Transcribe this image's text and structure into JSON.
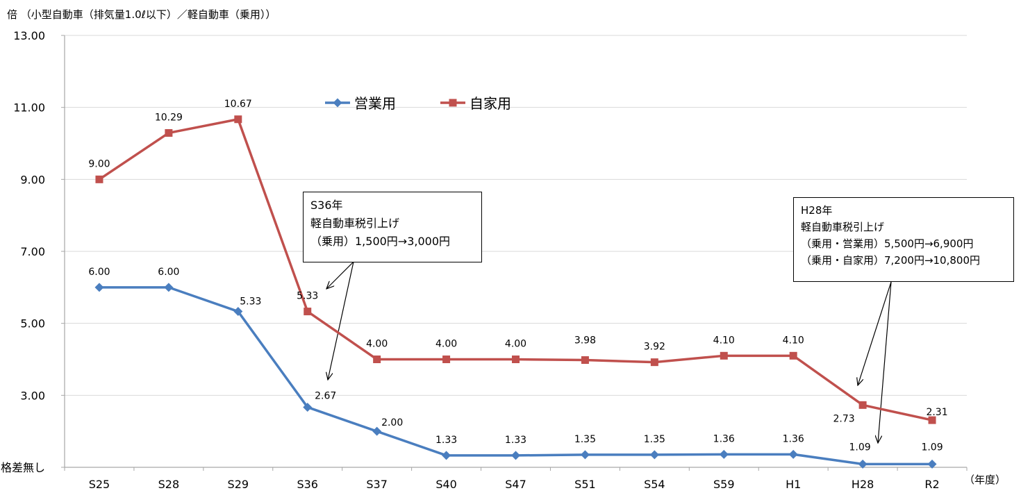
{
  "chart_data": {
    "type": "line",
    "title": "倍 （小型自動車（排気量1.0ℓ以下）／軽自動車（乗用））",
    "xlabel": "（年度）",
    "categories": [
      "S25",
      "S28",
      "S29",
      "S36",
      "S37",
      "S40",
      "S47",
      "S51",
      "S54",
      "S59",
      "H1",
      "H28",
      "R2"
    ],
    "y_ticks": [
      "13.00",
      "11.00",
      "9.00",
      "7.00",
      "5.00",
      "3.00",
      "格差無し"
    ],
    "ylim": [
      1.0,
      13.0
    ],
    "grid": true,
    "legend_position": "top-center",
    "series": [
      {
        "name": "営業用",
        "color": "#4a7ebf",
        "marker": "diamond",
        "values": [
          6.0,
          6.0,
          5.33,
          2.67,
          2.0,
          1.33,
          1.33,
          1.35,
          1.35,
          1.36,
          1.36,
          1.09,
          1.09
        ],
        "labels": [
          "6.00",
          "6.00",
          "5.33",
          "2.67",
          "2.00",
          "1.33",
          "1.33",
          "1.35",
          "1.35",
          "1.36",
          "1.36",
          "1.09",
          "1.09"
        ]
      },
      {
        "name": "自家用",
        "color": "#c0504d",
        "marker": "square",
        "values": [
          9.0,
          10.29,
          10.67,
          5.33,
          4.0,
          4.0,
          4.0,
          3.98,
          3.92,
          4.1,
          4.1,
          2.73,
          2.31
        ],
        "labels": [
          "9.00",
          "10.29",
          "10.67",
          "5.33",
          "4.00",
          "4.00",
          "4.00",
          "3.98",
          "3.92",
          "4.10",
          "4.10",
          "2.73",
          "2.31"
        ]
      }
    ],
    "annotations": [
      {
        "lines": [
          "S36年",
          "軽自動車税引上げ",
          "（乗用）1,500円→3,000円"
        ]
      },
      {
        "lines": [
          "H28年",
          "軽自動車税引上げ",
          "（乗用・営業用）5,500円→6,900円",
          "（乗用・自家用）7,200円→10,800円"
        ]
      }
    ]
  }
}
